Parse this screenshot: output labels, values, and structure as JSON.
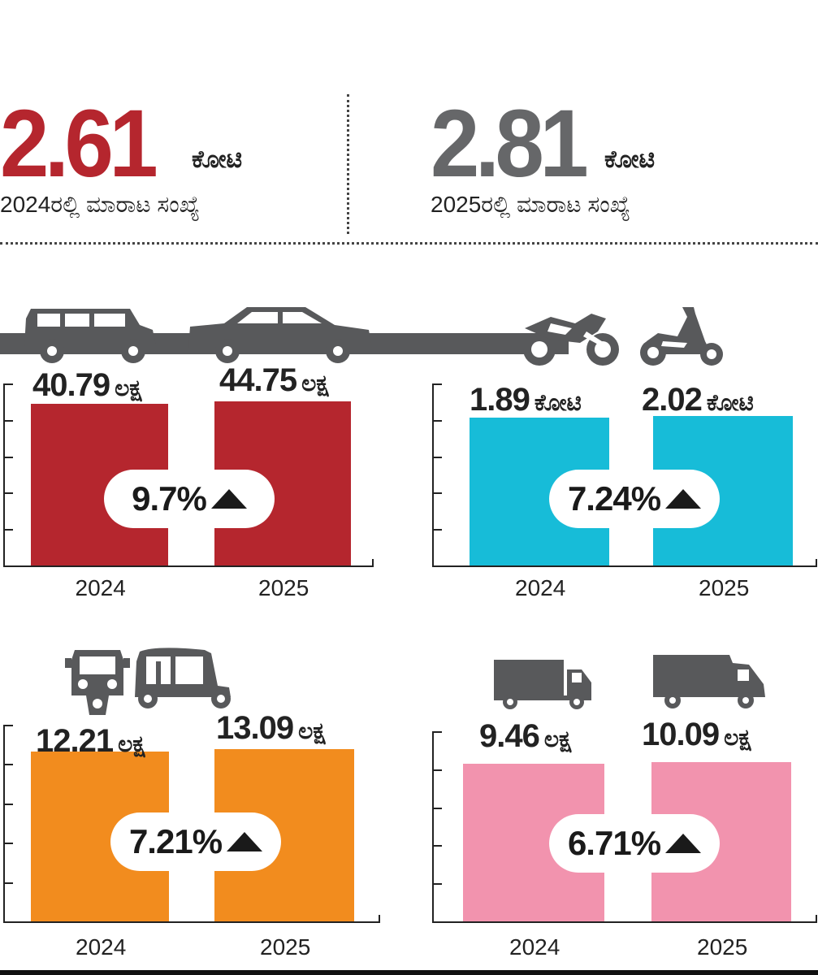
{
  "totals": {
    "y2024": {
      "value": "2.61",
      "unit": "ಕೋಟಿ",
      "caption": "2024ರಲ್ಲಿ ಮಾರಾಟ ಸಂಖ್ಯೆ",
      "color": "#b5262e"
    },
    "y2025": {
      "value": "2.81",
      "unit": "ಕೋಟಿ",
      "caption": "2025ರಲ್ಲಿ ಮಾರಾಟ ಸಂಖ್ಯೆ",
      "color": "#666769"
    }
  },
  "chart_data": [
    {
      "type": "bar",
      "icon": "car-icon",
      "categories": [
        "2024",
        "2025"
      ],
      "values": [
        40.79,
        44.75
      ],
      "data_labels": [
        {
          "num": "40.79",
          "unit": "ಲಕ್ಷ"
        },
        {
          "num": "44.75",
          "unit": "ಲಕ್ಷ"
        }
      ],
      "change": "9.7%",
      "color": "#b5262e"
    },
    {
      "type": "bar",
      "icon": "motorcycle-icon",
      "categories": [
        "2024",
        "2025"
      ],
      "values": [
        189,
        202
      ],
      "data_labels": [
        {
          "num": "1.89",
          "unit": "ಕೋಟಿ"
        },
        {
          "num": "2.02",
          "unit": "ಕೋಟಿ"
        }
      ],
      "change": "7.24%",
      "color": "#17bcd8"
    },
    {
      "type": "bar",
      "icon": "auto-rickshaw-icon",
      "categories": [
        "2024",
        "2025"
      ],
      "values": [
        12.21,
        13.09
      ],
      "data_labels": [
        {
          "num": "12.21",
          "unit": "ಲಕ್ಷ"
        },
        {
          "num": "13.09",
          "unit": "ಲಕ್ಷ"
        }
      ],
      "change": "7.21%",
      "color": "#f28c1e"
    },
    {
      "type": "bar",
      "icon": "truck-icon",
      "categories": [
        "2024",
        "2025"
      ],
      "values": [
        9.46,
        10.09
      ],
      "data_labels": [
        {
          "num": "9.46",
          "unit": "ಲಕ್ಷ"
        },
        {
          "num": "10.09",
          "unit": "ಲಕ್ಷ"
        }
      ],
      "change": "6.71%",
      "color": "#f293ae"
    }
  ]
}
